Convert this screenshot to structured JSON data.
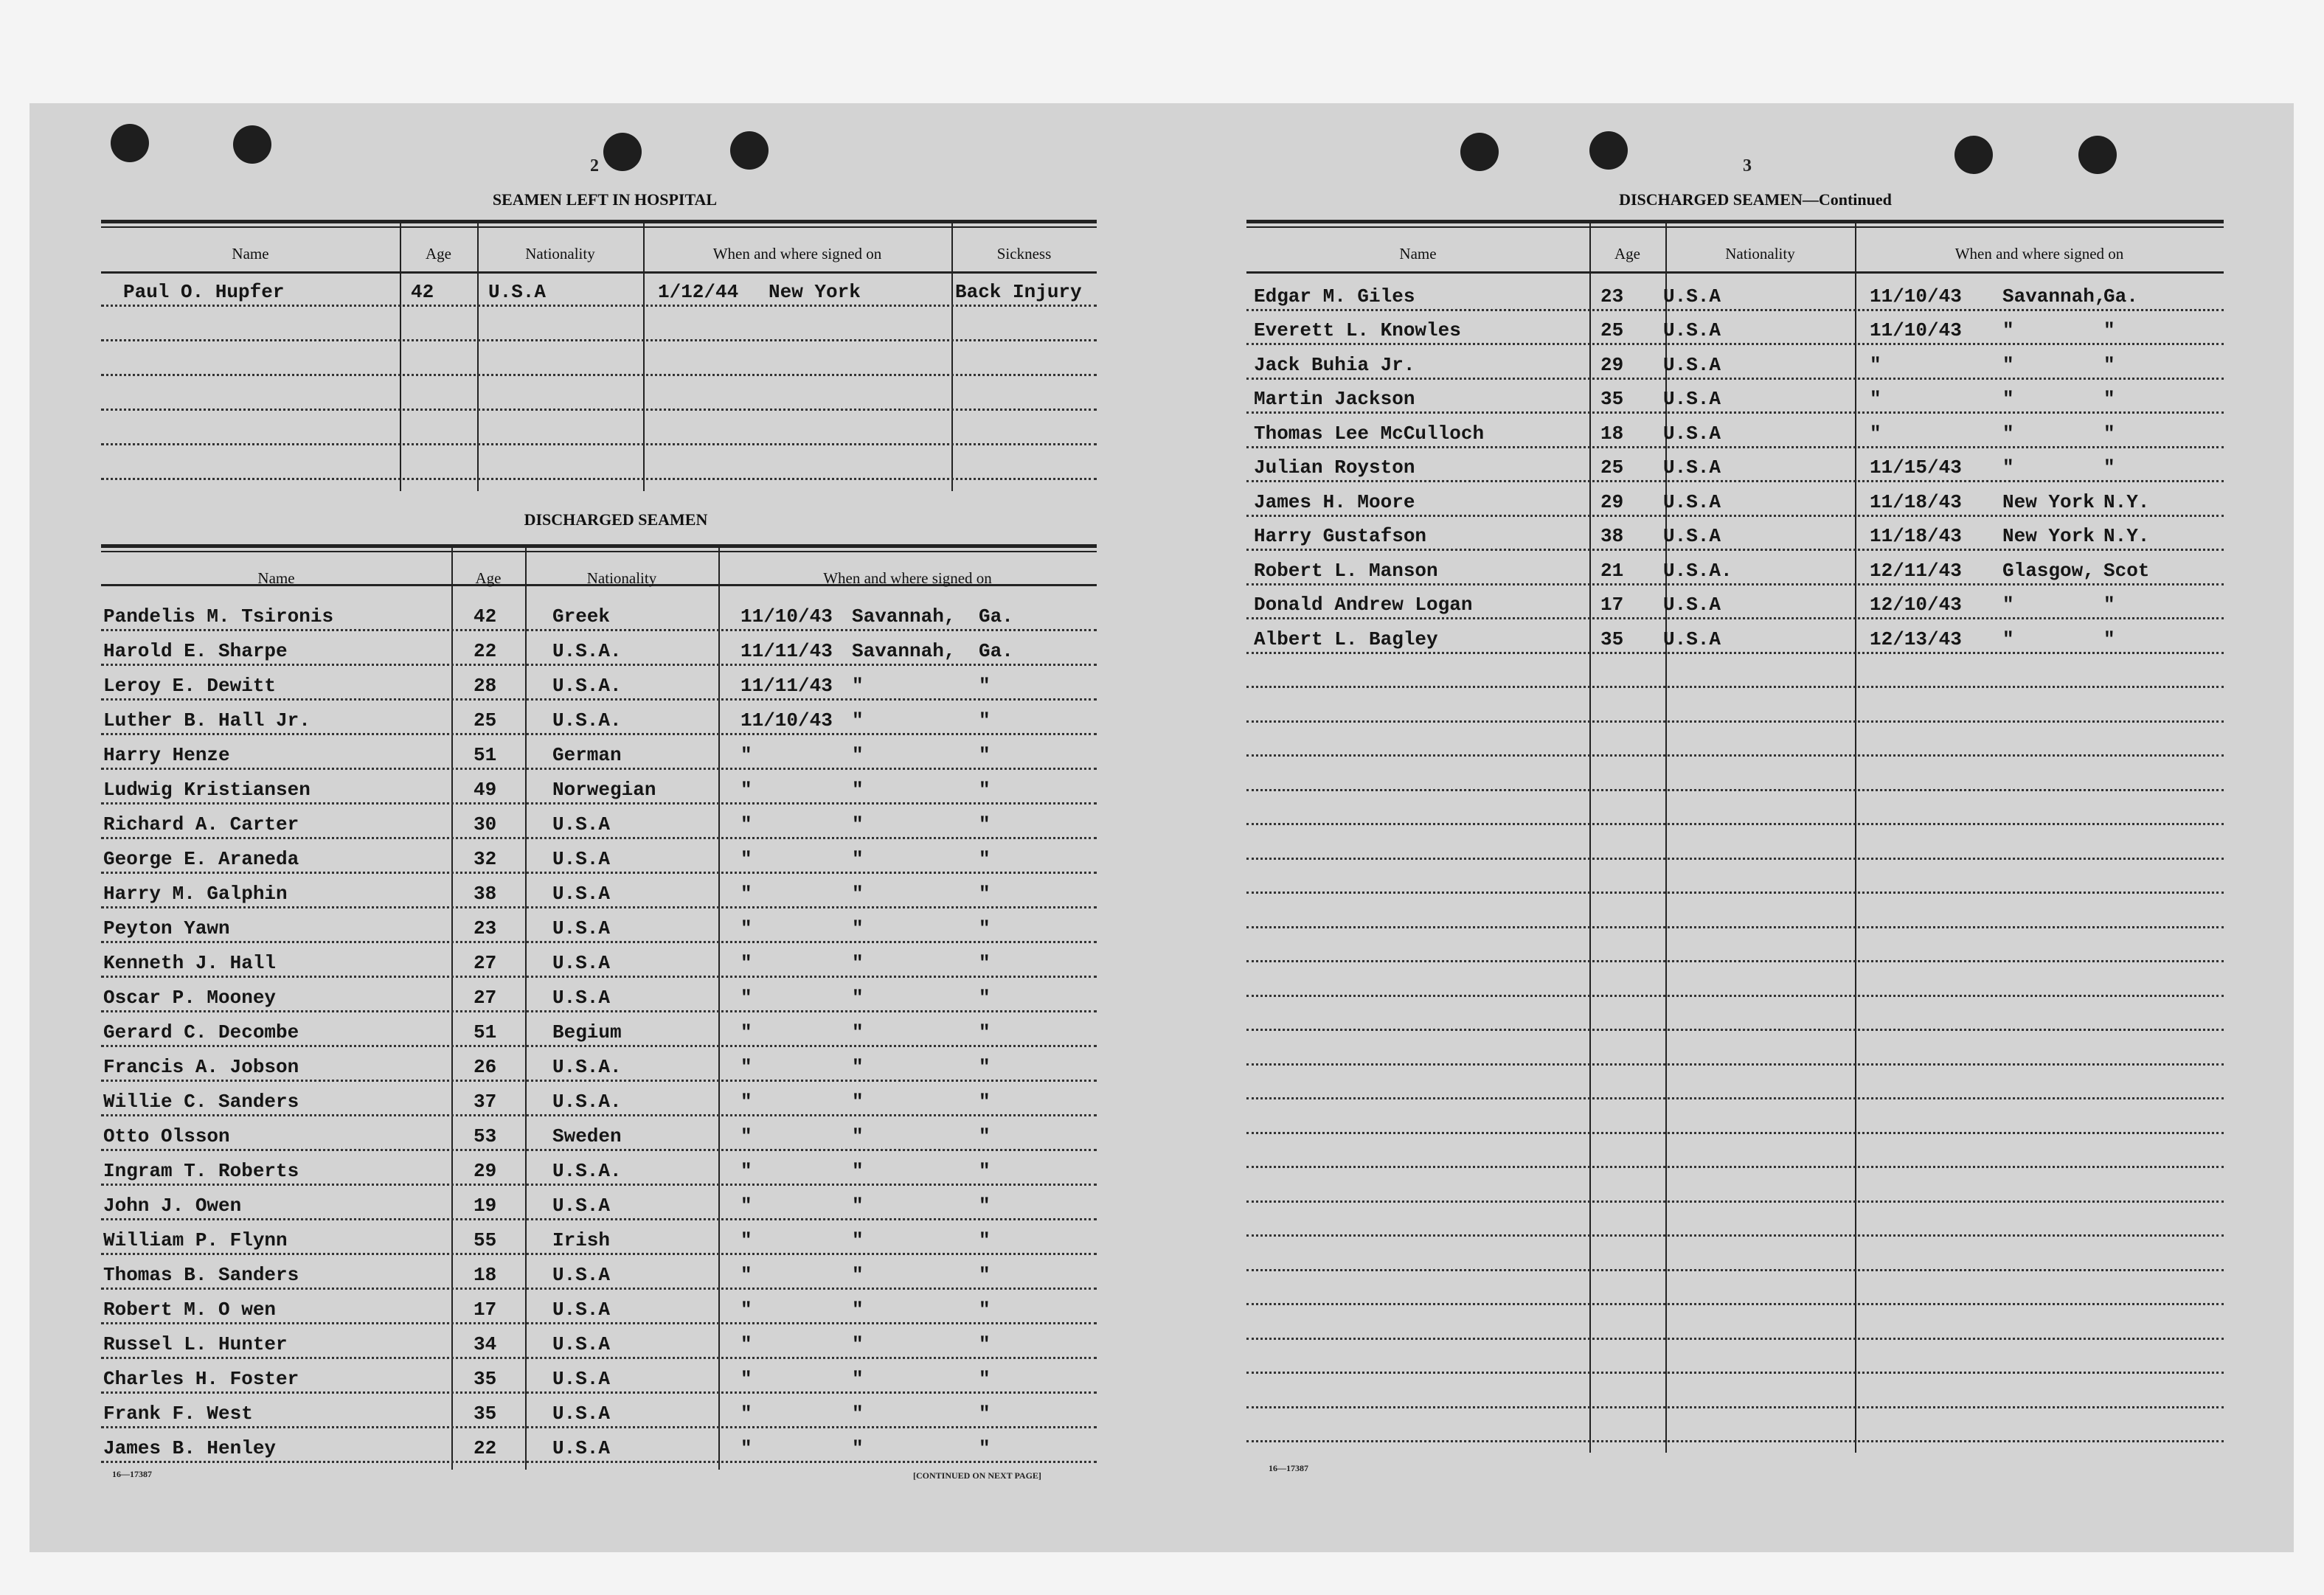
{
  "left_page": {
    "page_number": "2",
    "hospital": {
      "title": "SEAMEN LEFT IN HOSPITAL",
      "headers": [
        "Name",
        "Age",
        "Nationality",
        "When and where signed on",
        "Sickness"
      ],
      "rows": [
        {
          "name": "Paul O. Hupfer",
          "age": "42",
          "nationality": "U.S.A",
          "date": "1/12/44",
          "place": "New York",
          "sickness": "Back Injury"
        },
        {
          "name": "",
          "age": "",
          "nationality": "",
          "date": "",
          "place": "",
          "sickness": ""
        },
        {
          "name": "",
          "age": "",
          "nationality": "",
          "date": "",
          "place": "",
          "sickness": ""
        },
        {
          "name": "",
          "age": "",
          "nationality": "",
          "date": "",
          "place": "",
          "sickness": ""
        },
        {
          "name": "",
          "age": "",
          "nationality": "",
          "date": "",
          "place": "",
          "sickness": ""
        },
        {
          "name": "",
          "age": "",
          "nationality": "",
          "date": "",
          "place": "",
          "sickness": ""
        }
      ]
    },
    "discharged": {
      "title": "DISCHARGED SEAMEN",
      "headers": [
        "Name",
        "Age",
        "Nationality",
        "When and where signed on"
      ],
      "rows": [
        {
          "name": "Pandelis M. Tsironis",
          "age": "42",
          "nationality": "Greek",
          "date": "11/10/43",
          "place": "Savannah,",
          "state": "Ga."
        },
        {
          "name": "Harold E. Sharpe",
          "age": "22",
          "nationality": "U.S.A.",
          "date": "11/11/43",
          "place": "Savannah,",
          "state": "Ga."
        },
        {
          "name": "Leroy E. Dewitt",
          "age": "28",
          "nationality": "U.S.A.",
          "date": "11/11/43",
          "place": "\"",
          "state": "\""
        },
        {
          "name": "Luther B. Hall  Jr.",
          "age": "25",
          "nationality": "U.S.A.",
          "date": "11/10/43",
          "place": "\"",
          "state": "\""
        },
        {
          "name": "Harry Henze",
          "age": "51",
          "nationality": "German",
          "date": "\"",
          "place": "\"",
          "state": "\""
        },
        {
          "name": "Ludwig Kristiansen",
          "age": "49",
          "nationality": "Norwegian",
          "date": "\"",
          "place": "\"",
          "state": "\""
        },
        {
          "name": "Richard A. Carter",
          "age": "30",
          "nationality": "U.S.A",
          "date": "\"",
          "place": "\"",
          "state": "\""
        },
        {
          "name": "George E. Araneda",
          "age": "32",
          "nationality": "U.S.A",
          "date": "\"",
          "place": "\"",
          "state": "\""
        },
        {
          "name": "Harry M. Galphin",
          "age": "38",
          "nationality": "U.S.A",
          "date": "\"",
          "place": "\"",
          "state": "\""
        },
        {
          "name": "Peyton Yawn",
          "age": "23",
          "nationality": "U.S.A",
          "date": "\"",
          "place": "\"",
          "state": "\""
        },
        {
          "name": "Kenneth J. Hall",
          "age": "27",
          "nationality": "U.S.A",
          "date": "\"",
          "place": "\"",
          "state": "\""
        },
        {
          "name": "Oscar P. Mooney",
          "age": "27",
          "nationality": "U.S.A",
          "date": "\"",
          "place": "\"",
          "state": "\""
        },
        {
          "name": "Gerard C. Decombe",
          "age": "51",
          "nationality": "Begium",
          "date": "\"",
          "place": "\"",
          "state": "\""
        },
        {
          "name": "Francis A. Jobson",
          "age": "26",
          "nationality": "U.S.A.",
          "date": "\"",
          "place": "\"",
          "state": "\""
        },
        {
          "name": "Willie C. Sanders",
          "age": "37",
          "nationality": "U.S.A.",
          "date": "\"",
          "place": "\"",
          "state": "\""
        },
        {
          "name": "Otto Olsson",
          "age": "53",
          "nationality": "Sweden",
          "date": "\"",
          "place": "\"",
          "state": "\""
        },
        {
          "name": "Ingram T. Roberts",
          "age": "29",
          "nationality": "U.S.A.",
          "date": "\"",
          "place": "\"",
          "state": "\""
        },
        {
          "name": "John J. Owen",
          "age": "19",
          "nationality": "U.S.A",
          "date": "\"",
          "place": "\"",
          "state": "\""
        },
        {
          "name": "William P. Flynn",
          "age": "55",
          "nationality": "Irish",
          "date": "\"",
          "place": "\"",
          "state": "\""
        },
        {
          "name": "Thomas B. Sanders",
          "age": "18",
          "nationality": "U.S.A",
          "date": "\"",
          "place": "\"",
          "state": "\""
        },
        {
          "name": "Robert M. O wen",
          "age": "17",
          "nationality": "U.S.A",
          "date": "\"",
          "place": "\"",
          "state": "\""
        },
        {
          "name": "Russel L. Hunter",
          "age": "34",
          "nationality": "U.S.A",
          "date": "\"",
          "place": "\"",
          "state": "\""
        },
        {
          "name": "Charles H. Foster",
          "age": "35",
          "nationality": "U.S.A",
          "date": "\"",
          "place": "\"",
          "state": "\""
        },
        {
          "name": "Frank F. West",
          "age": "35",
          "nationality": "U.S.A",
          "date": "\"",
          "place": "\"",
          "state": "\""
        },
        {
          "name": "James B. Henley",
          "age": "22",
          "nationality": "U.S.A",
          "date": "\"",
          "place": "\"",
          "state": "\""
        }
      ]
    },
    "form_number": "16—17387",
    "continued_note": "[CONTINUED ON NEXT PAGE]"
  },
  "right_page": {
    "page_number": "3",
    "title": "DISCHARGED SEAMEN—Continued",
    "headers": [
      "Name",
      "Age",
      "Nationality",
      "When and where signed on"
    ],
    "rows": [
      {
        "name": "Edgar M. Giles",
        "age": "23",
        "nationality": "U.S.A",
        "date": "11/10/43",
        "place": "Savannah,",
        "state": "Ga."
      },
      {
        "name": "Everett L. Knowles",
        "age": "25",
        "nationality": "U.S.A",
        "date": "11/10/43",
        "place": "\"",
        "state": "\""
      },
      {
        "name": "Jack Buhia Jr.",
        "age": "29",
        "nationality": "U.S.A",
        "date": "\"",
        "place": "\"",
        "state": "\""
      },
      {
        "name": "Martin Jackson",
        "age": "35",
        "nationality": "U.S.A",
        "date": "\"",
        "place": "\"",
        "state": "\""
      },
      {
        "name": "Thomas Lee McCulloch",
        "age": "18",
        "nationality": "U.S.A",
        "date": "\"",
        "place": "\"",
        "state": "\""
      },
      {
        "name": "Julian Royston",
        "age": "25",
        "nationality": "U.S.A",
        "date": "11/15/43",
        "place": "\"",
        "state": "\""
      },
      {
        "name": "James H. Moore",
        "age": "29",
        "nationality": "U.S.A",
        "date": "11/18/43",
        "place": "New York",
        "state": "N.Y."
      },
      {
        "name": "Harry Gustafson",
        "age": "38",
        "nationality": "U.S.A",
        "date": "11/18/43",
        "place": "New York",
        "state": "N.Y."
      },
      {
        "name": "Robert L. Manson",
        "age": "21",
        "nationality": "U.S.A.",
        "date": "12/11/43",
        "place": "Glasgow,",
        "state": "Scot"
      },
      {
        "name": "Donald Andrew Logan",
        "age": "17",
        "nationality": "U.S.A",
        "date": "12/10/43",
        "place": "\"",
        "state": "\""
      },
      {
        "name": "Albert L. Bagley",
        "age": "35",
        "nationality": "U.S.A",
        "date": "12/13/43",
        "place": "\"",
        "state": "\""
      }
    ],
    "form_number": "16—17387"
  }
}
